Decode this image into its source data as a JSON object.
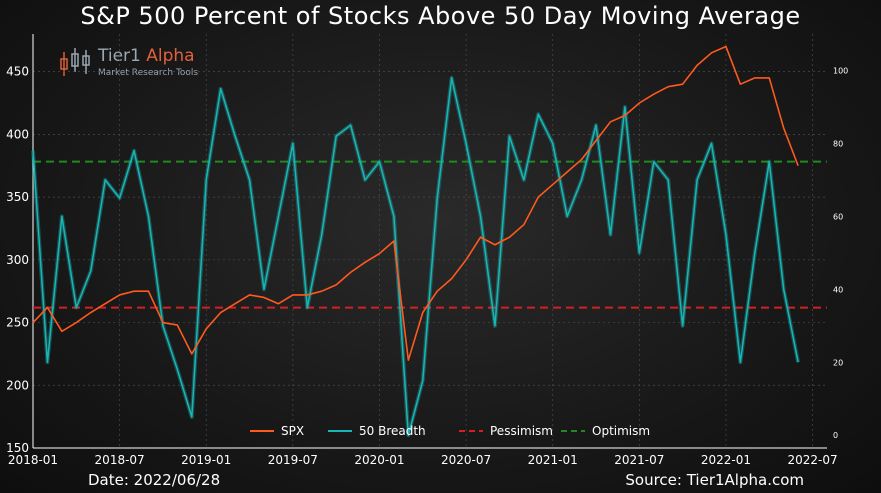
{
  "title": "S&P 500 Percent of Stocks Above 50 Day Moving Average",
  "logo": {
    "name_part1": "Tier1",
    "name_part2": "Alpha",
    "tagline": "Market Research Tools"
  },
  "footer": {
    "date": "Date: 2022/06/28",
    "source": "Source: Tier1Alpha.com"
  },
  "colors": {
    "spx": "#ff5a1e",
    "breadth": "#19b6b6",
    "pessimism": "#d42020",
    "optimism": "#1f8a1f",
    "grid": "#4a4a4a"
  },
  "chart_data": {
    "type": "line",
    "title": "S&P 500 Percent of Stocks Above 50 Day Moving Average",
    "xlabel": "",
    "ylabel": "",
    "x_ticks": [
      "2018-01",
      "2018-07",
      "2019-01",
      "2019-07",
      "2020-01",
      "2020-07",
      "2021-01",
      "2021-07",
      "2022-01",
      "2022-07"
    ],
    "x_range": [
      "2018-01",
      "2022-08"
    ],
    "y_left": {
      "range": [
        150,
        480
      ],
      "ticks": [
        150,
        200,
        250,
        300,
        350,
        400,
        450
      ]
    },
    "y_right": {
      "range": [
        -3.5,
        110
      ],
      "ticks": [
        0,
        20,
        40,
        60,
        80,
        100
      ]
    },
    "grid": true,
    "legend_position": "bottom-center",
    "series": [
      {
        "name": "SPX",
        "axis": "left",
        "x": [
          "2018-01",
          "2018-02",
          "2018-03",
          "2018-04",
          "2018-05",
          "2018-06",
          "2018-07",
          "2018-08",
          "2018-09",
          "2018-10",
          "2018-11",
          "2018-12",
          "2019-01",
          "2019-02",
          "2019-03",
          "2019-04",
          "2019-05",
          "2019-06",
          "2019-07",
          "2019-08",
          "2019-09",
          "2019-10",
          "2019-11",
          "2019-12",
          "2020-01",
          "2020-02",
          "2020-03",
          "2020-04",
          "2020-05",
          "2020-06",
          "2020-07",
          "2020-08",
          "2020-09",
          "2020-10",
          "2020-11",
          "2020-12",
          "2021-01",
          "2021-02",
          "2021-03",
          "2021-04",
          "2021-05",
          "2021-06",
          "2021-07",
          "2021-08",
          "2021-09",
          "2021-10",
          "2021-11",
          "2021-12",
          "2022-01",
          "2022-02",
          "2022-03",
          "2022-04",
          "2022-05",
          "2022-06"
        ],
        "values": [
          250,
          262,
          243,
          250,
          258,
          265,
          272,
          275,
          275,
          250,
          248,
          225,
          245,
          258,
          265,
          272,
          270,
          265,
          272,
          272,
          275,
          280,
          290,
          298,
          305,
          315,
          220,
          258,
          275,
          285,
          300,
          318,
          312,
          318,
          328,
          350,
          360,
          370,
          380,
          395,
          410,
          415,
          425,
          432,
          438,
          440,
          455,
          465,
          470,
          440,
          445,
          445,
          405,
          375
        ]
      },
      {
        "name": "50 Breadth",
        "axis": "right",
        "x": [
          "2018-01",
          "2018-02",
          "2018-03",
          "2018-04",
          "2018-05",
          "2018-06",
          "2018-07",
          "2018-08",
          "2018-09",
          "2018-10",
          "2018-11",
          "2018-12",
          "2019-01",
          "2019-02",
          "2019-03",
          "2019-04",
          "2019-05",
          "2019-06",
          "2019-07",
          "2019-08",
          "2019-09",
          "2019-10",
          "2019-11",
          "2019-12",
          "2020-01",
          "2020-02",
          "2020-03",
          "2020-04",
          "2020-05",
          "2020-06",
          "2020-07",
          "2020-08",
          "2020-09",
          "2020-10",
          "2020-11",
          "2020-12",
          "2021-01",
          "2021-02",
          "2021-03",
          "2021-04",
          "2021-05",
          "2021-06",
          "2021-07",
          "2021-08",
          "2021-09",
          "2021-10",
          "2021-11",
          "2021-12",
          "2022-01",
          "2022-02",
          "2022-03",
          "2022-04",
          "2022-05",
          "2022-06"
        ],
        "values": [
          78,
          20,
          60,
          35,
          45,
          70,
          65,
          78,
          60,
          30,
          18,
          5,
          70,
          95,
          82,
          70,
          40,
          60,
          80,
          35,
          55,
          82,
          85,
          70,
          75,
          60,
          0,
          15,
          65,
          98,
          80,
          60,
          30,
          82,
          70,
          88,
          80,
          60,
          70,
          85,
          55,
          90,
          50,
          75,
          70,
          30,
          70,
          80,
          55,
          20,
          50,
          75,
          40,
          20
        ]
      },
      {
        "name": "Pessimism",
        "axis": "right",
        "values": [
          35
        ]
      },
      {
        "name": "Optimism",
        "axis": "right",
        "values": [
          75
        ]
      }
    ]
  }
}
